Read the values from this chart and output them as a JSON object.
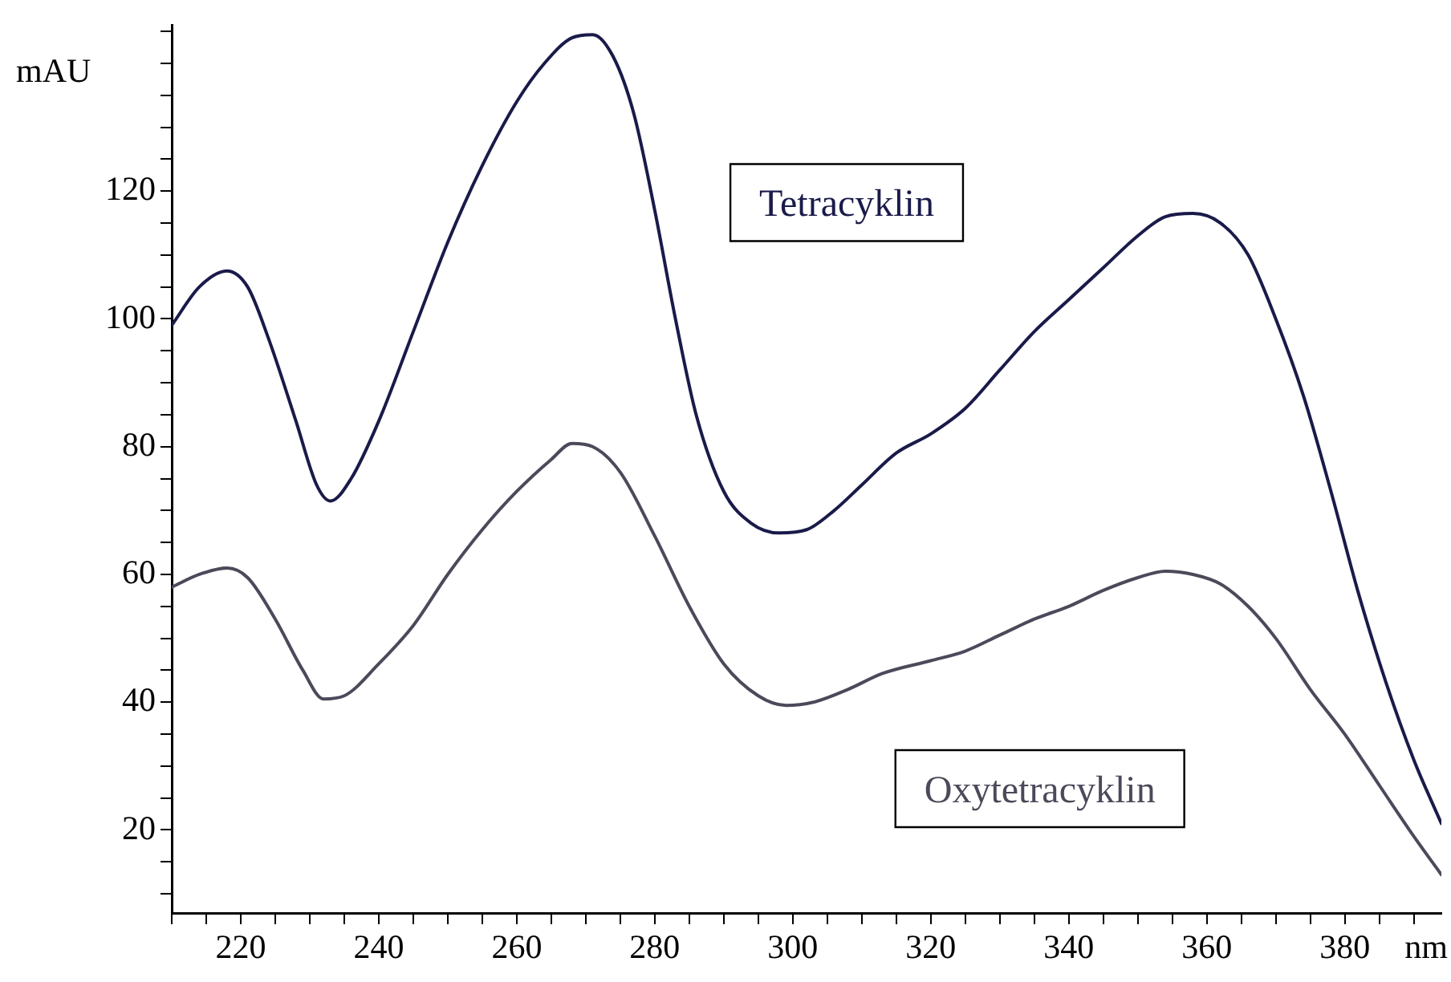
{
  "chart_data": {
    "type": "line",
    "xlabel": "nm",
    "ylabel": "mAU",
    "xlim": [
      210,
      394
    ],
    "ylim": [
      7,
      146
    ],
    "xticks": [
      {
        "value": 210,
        "label": null
      },
      {
        "value": 215,
        "label": null
      },
      220,
      {
        "value": 225,
        "label": null
      },
      {
        "value": 230,
        "label": null
      },
      {
        "value": 235,
        "label": null
      },
      240,
      {
        "value": 245,
        "label": null
      },
      {
        "value": 250,
        "label": null
      },
      {
        "value": 255,
        "label": null
      },
      260,
      {
        "value": 265,
        "label": null
      },
      {
        "value": 270,
        "label": null
      },
      {
        "value": 275,
        "label": null
      },
      280,
      {
        "value": 285,
        "label": null
      },
      {
        "value": 290,
        "label": null
      },
      {
        "value": 295,
        "label": null
      },
      300,
      {
        "value": 305,
        "label": null
      },
      {
        "value": 310,
        "label": null
      },
      {
        "value": 315,
        "label": null
      },
      320,
      {
        "value": 325,
        "label": null
      },
      {
        "value": 330,
        "label": null
      },
      {
        "value": 335,
        "label": null
      },
      340,
      {
        "value": 345,
        "label": null
      },
      {
        "value": 350,
        "label": null
      },
      {
        "value": 355,
        "label": null
      },
      360,
      {
        "value": 365,
        "label": null
      },
      {
        "value": 370,
        "label": null
      },
      {
        "value": 375,
        "label": null
      },
      380,
      {
        "value": 385,
        "label": null
      },
      {
        "value": 390,
        "label": null
      }
    ],
    "yticks": [
      {
        "value": 10,
        "label": null
      },
      {
        "value": 15,
        "label": null
      },
      20,
      {
        "value": 25,
        "label": null
      },
      {
        "value": 30,
        "label": null
      },
      {
        "value": 35,
        "label": null
      },
      40,
      {
        "value": 45,
        "label": null
      },
      {
        "value": 50,
        "label": null
      },
      {
        "value": 55,
        "label": null
      },
      60,
      {
        "value": 65,
        "label": null
      },
      {
        "value": 70,
        "label": null
      },
      {
        "value": 75,
        "label": null
      },
      80,
      {
        "value": 85,
        "label": null
      },
      {
        "value": 90,
        "label": null
      },
      {
        "value": 95,
        "label": null
      },
      100,
      {
        "value": 105,
        "label": null
      },
      {
        "value": 110,
        "label": null
      },
      {
        "value": 115,
        "label": null
      },
      120,
      {
        "value": 125,
        "label": null
      },
      {
        "value": 130,
        "label": null
      },
      {
        "value": 135,
        "label": null
      },
      {
        "value": 140,
        "label": null
      },
      {
        "value": 145,
        "label": null
      }
    ],
    "grid": false,
    "legend": false,
    "marker": "none",
    "line_style": "solid",
    "series": [
      {
        "name": "Tetracyklin",
        "color": "#1a1a4a",
        "x": [
          210,
          214,
          218,
          221,
          224,
          228,
          231,
          233,
          236,
          240,
          245,
          250,
          255,
          260,
          264,
          268,
          271,
          274,
          277,
          280,
          283,
          286,
          290,
          294,
          298,
          302,
          306,
          310,
          315,
          320,
          325,
          330,
          335,
          340,
          345,
          350,
          354,
          358,
          362,
          366,
          370,
          374,
          378,
          382,
          386,
          390,
          394
        ],
        "values": [
          99,
          105,
          107.5,
          105,
          97,
          84,
          74,
          71.5,
          75,
          84,
          98,
          112,
          124,
          134,
          140,
          144,
          144.5,
          141,
          132,
          117,
          100,
          85,
          73,
          68,
          66.5,
          67,
          70,
          74,
          79,
          82,
          86,
          92,
          98,
          103,
          108,
          113,
          116,
          116.5,
          115,
          110,
          100,
          88,
          73,
          57,
          43,
          31,
          21
        ]
      },
      {
        "name": "Oxytetracyklin",
        "color": "#4a4a5a",
        "x": [
          210,
          214,
          218,
          221,
          225,
          229,
          232,
          235,
          240,
          245,
          250,
          255,
          260,
          265,
          268,
          271,
          275,
          280,
          285,
          290,
          295,
          299,
          303,
          308,
          313,
          320,
          325,
          330,
          335,
          340,
          345,
          350,
          354,
          358,
          362,
          366,
          370,
          375,
          380,
          385,
          390,
          394
        ],
        "values": [
          58,
          60,
          61,
          59.5,
          53,
          45,
          40.5,
          41,
          46,
          52,
          60,
          67,
          73,
          78,
          80.5,
          80,
          76,
          66,
          55,
          46,
          41,
          39.5,
          40,
          42,
          44.5,
          46.5,
          48,
          50.5,
          53,
          55,
          57.5,
          59.5,
          60.5,
          60,
          58.5,
          55,
          50,
          42,
          35,
          27,
          19,
          13
        ]
      }
    ]
  }
}
